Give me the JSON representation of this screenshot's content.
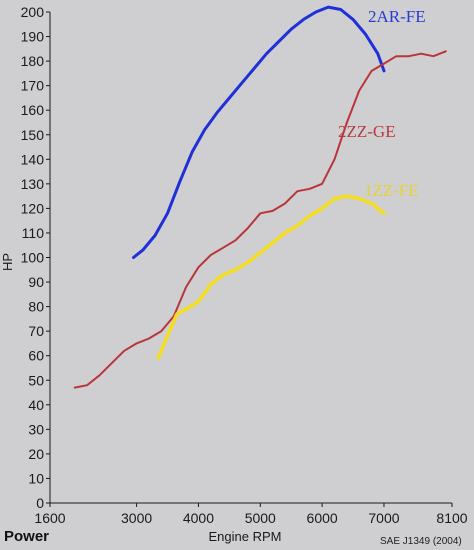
{
  "caption": "Power",
  "source_note": "SAE J1349 (2004)",
  "colors": {
    "background": "#cfcfd1",
    "axis": "#1a1a1a"
  },
  "chart_data": {
    "type": "line",
    "xlabel": "Engine RPM",
    "ylabel": "HP",
    "xlim": [
      1600,
      8100
    ],
    "ylim": [
      0,
      200
    ],
    "x_ticks": [
      1600,
      3000,
      4000,
      5000,
      6000,
      7000,
      8100
    ],
    "y_ticks": [
      0,
      10,
      20,
      30,
      40,
      50,
      60,
      70,
      80,
      90,
      100,
      110,
      120,
      130,
      140,
      150,
      160,
      170,
      180,
      190,
      200
    ],
    "grid": false,
    "legend": "inline labels",
    "series": [
      {
        "name": "2AR-FE",
        "color": "#2030d8",
        "label_color": "#2a3ad6",
        "width": 3,
        "points": [
          [
            2950,
            100
          ],
          [
            3100,
            103
          ],
          [
            3300,
            109
          ],
          [
            3500,
            118
          ],
          [
            3700,
            131
          ],
          [
            3900,
            143
          ],
          [
            4100,
            152
          ],
          [
            4300,
            159
          ],
          [
            4500,
            165
          ],
          [
            4700,
            171
          ],
          [
            4900,
            177
          ],
          [
            5100,
            183
          ],
          [
            5300,
            188
          ],
          [
            5500,
            193
          ],
          [
            5700,
            197
          ],
          [
            5900,
            200
          ],
          [
            6100,
            202
          ],
          [
            6300,
            201
          ],
          [
            6500,
            197
          ],
          [
            6700,
            191
          ],
          [
            6900,
            183
          ],
          [
            7000,
            176
          ]
        ]
      },
      {
        "name": "2ZZ-GE",
        "color": "#b8353a",
        "label_color": "#b83a3c",
        "width": 2,
        "points": [
          [
            2000,
            47
          ],
          [
            2200,
            48
          ],
          [
            2400,
            52
          ],
          [
            2600,
            57
          ],
          [
            2800,
            62
          ],
          [
            3000,
            65
          ],
          [
            3200,
            67
          ],
          [
            3400,
            70
          ],
          [
            3600,
            76
          ],
          [
            3800,
            88
          ],
          [
            4000,
            96
          ],
          [
            4200,
            101
          ],
          [
            4400,
            104
          ],
          [
            4600,
            107
          ],
          [
            4800,
            112
          ],
          [
            5000,
            118
          ],
          [
            5200,
            119
          ],
          [
            5400,
            122
          ],
          [
            5600,
            127
          ],
          [
            5800,
            128
          ],
          [
            6000,
            130
          ],
          [
            6200,
            140
          ],
          [
            6400,
            155
          ],
          [
            6600,
            168
          ],
          [
            6800,
            176
          ],
          [
            7000,
            179
          ],
          [
            7200,
            182
          ],
          [
            7400,
            182
          ],
          [
            7600,
            183
          ],
          [
            7800,
            182
          ],
          [
            8000,
            184
          ]
        ]
      },
      {
        "name": "1ZZ-FE",
        "color": "#f5dd20",
        "label_color": "#e6d232",
        "width": 3.5,
        "points": [
          [
            3350,
            59
          ],
          [
            3500,
            68
          ],
          [
            3650,
            77
          ],
          [
            3800,
            79
          ],
          [
            4000,
            82
          ],
          [
            4200,
            89
          ],
          [
            4400,
            93
          ],
          [
            4600,
            95
          ],
          [
            4800,
            98
          ],
          [
            5000,
            102
          ],
          [
            5200,
            106
          ],
          [
            5400,
            110
          ],
          [
            5600,
            113
          ],
          [
            5800,
            117
          ],
          [
            6000,
            120
          ],
          [
            6200,
            124
          ],
          [
            6400,
            125
          ],
          [
            6600,
            124
          ],
          [
            6800,
            122
          ],
          [
            7000,
            118
          ]
        ]
      }
    ]
  }
}
